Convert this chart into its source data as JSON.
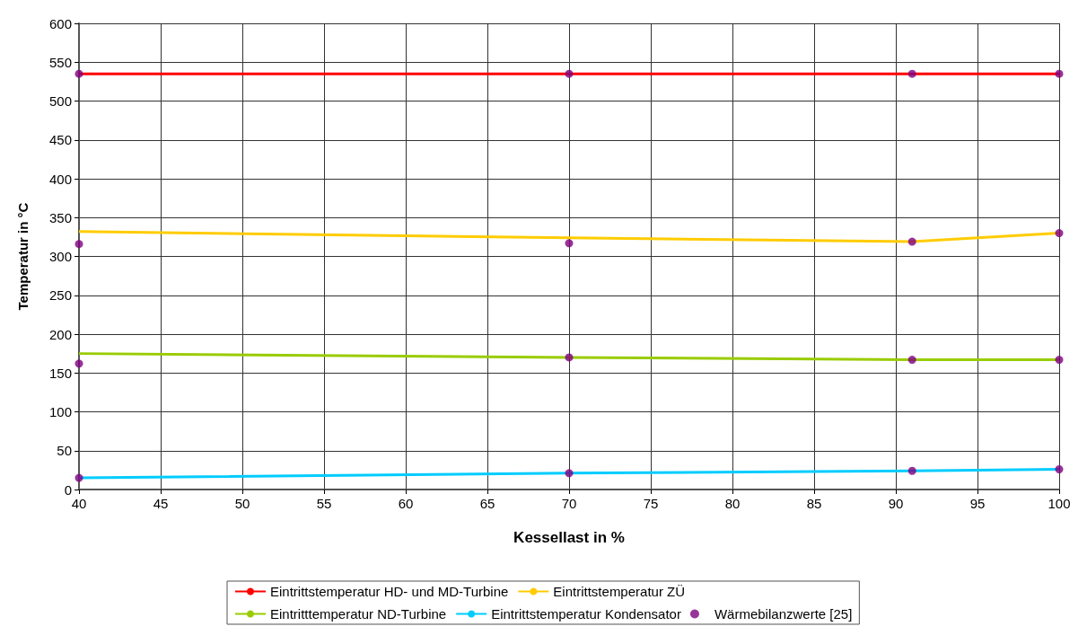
{
  "chart_data": {
    "type": "line",
    "xlabel": "Kessellast in %",
    "ylabel": "Temperatur in °C",
    "x": [
      40,
      70,
      91,
      100
    ],
    "series": [
      {
        "name": "Eintrittstemperatur HD- und MD-Turbine",
        "color": "#ff0000",
        "values": [
          535,
          535,
          535,
          535
        ]
      },
      {
        "name": "Eintrittstemperatur ZÜ",
        "color": "#ffcc00",
        "values": [
          332,
          324,
          319,
          330
        ]
      },
      {
        "name": "Eintritttemperatur ND-Turbine",
        "color": "#99cc00",
        "values": [
          175,
          170,
          167,
          167
        ]
      },
      {
        "name": "Eintrittstemperatur Kondensator",
        "color": "#00ccff",
        "values": [
          15,
          21,
          24,
          26
        ]
      },
      {
        "name": "Wärmebilanzwerte [25]",
        "type": "scatter",
        "color": "#800080",
        "marker": "circle",
        "values": [
          535,
          535,
          535,
          535,
          316,
          317,
          319,
          330,
          162,
          170,
          167,
          167,
          15,
          21,
          24,
          26
        ],
        "x": [
          40,
          70,
          91,
          100,
          40,
          70,
          91,
          100,
          40,
          70,
          91,
          100,
          40,
          70,
          91,
          100
        ]
      }
    ],
    "xlim": [
      40,
      100
    ],
    "xticks": [
      40,
      45,
      50,
      55,
      60,
      65,
      70,
      75,
      80,
      85,
      90,
      95,
      100
    ],
    "ylim": [
      0,
      600
    ],
    "yticks": [
      0,
      50,
      100,
      150,
      200,
      250,
      300,
      350,
      400,
      450,
      500,
      550,
      600
    ],
    "grid": true,
    "legend": "bottom"
  }
}
